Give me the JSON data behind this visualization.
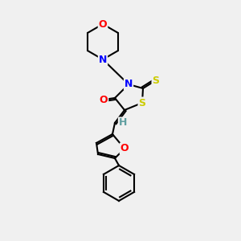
{
  "bg_color": "#f0f0f0",
  "bond_color": "#000000",
  "atom_colors": {
    "O": "#ff0000",
    "N": "#0000ff",
    "S": "#cccc00",
    "H": "#5f9ea0",
    "C": "#000000"
  },
  "title": "",
  "figsize": [
    3.0,
    3.0
  ],
  "dpi": 100
}
